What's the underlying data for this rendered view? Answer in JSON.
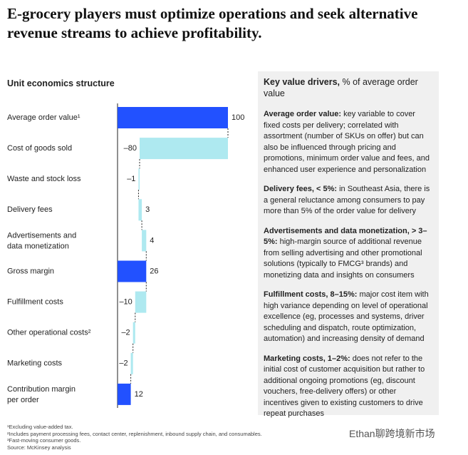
{
  "title": "E-grocery players must optimize operations and seek alternative revenue streams to achieve profitability.",
  "chart_data": {
    "type": "waterfall",
    "subtitle": "Unit economics structure",
    "categories": [
      "Average order value¹",
      "Cost of goods sold",
      "Waste and stock loss",
      "Delivery fees",
      "Advertisements and data monetization",
      "Gross margin",
      "Fulfillment costs",
      "Other operational costs²",
      "Marketing costs",
      "Contribution margin per order"
    ],
    "values": [
      100,
      -80,
      -1,
      3,
      4,
      26,
      -10,
      -2,
      -2,
      12
    ],
    "value_labels": [
      "100",
      "–80",
      "–1",
      "3",
      "4",
      "26",
      "–10",
      "–2",
      "–2",
      "12"
    ],
    "is_total": [
      true,
      false,
      false,
      false,
      false,
      true,
      false,
      false,
      false,
      true
    ],
    "total_color": "#2251ff",
    "change_color": "#aee9f0"
  },
  "panel": {
    "heading": "Key value drivers,",
    "heading_note": "% of average order value",
    "items": [
      {
        "lead": "Average order value:",
        "text": "key variable to cover fixed costs per delivery; correlated with assortment (number of SKUs on offer) but can also be influenced through pricing and promotions, minimum order value and fees, and enhanced user experience and personalization"
      },
      {
        "lead": "Delivery fees, < 5%:",
        "text": "in Southeast Asia, there is a general reluctance among consumers to pay more than 5% of the order value for delivery"
      },
      {
        "lead": "Advertisements and data monetization, > 3–5%:",
        "text": "high-margin source of additional revenue from selling advertising and other promotional solutions (typically to FMCG³ brands) and monetizing data and insights on consumers"
      },
      {
        "lead": "Fulfillment costs, 8–15%:",
        "text": "major cost item with high variance depending on level of operational excellence (eg, processes and systems, driver scheduling and dispatch, route optimization, automation) and increasing density of demand"
      },
      {
        "lead": "Marketing costs, 1–2%:",
        "text": "does not refer to the initial cost of customer acquisition but rather to additional ongoing promotions (eg, discount vouchers, free-delivery offers) or other incentives given to existing customers to drive repeat purchases"
      }
    ]
  },
  "footnotes": [
    "¹Excluding value-added tax.",
    "²Includes payment processing fees, contact center, replenishment, inbound supply chain, and consumables.",
    "³Fast-moving consumer goods.",
    "Source: McKinsey analysis"
  ],
  "watermark": "Ethan聊跨境新市场"
}
